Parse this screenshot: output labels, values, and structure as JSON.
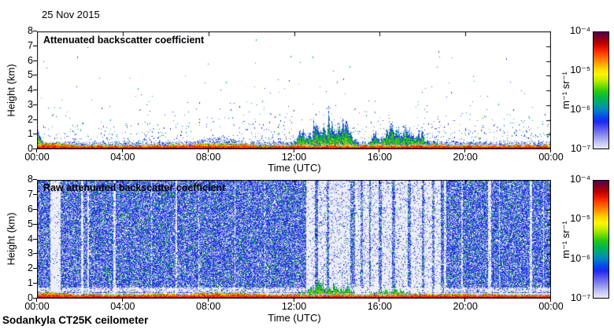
{
  "figure": {
    "date_title": "25 Nov 2015",
    "footer": "Sodankyla CT25K ceilometer",
    "xlabel": "Time (UTC)",
    "ylabel": "Height (km)",
    "colorbar_units": "m⁻¹ sr⁻¹",
    "background": "#ffffff"
  },
  "chart_data": [
    {
      "type": "heatmap",
      "panel": "top",
      "title": "Attenuated backscatter coefficient",
      "xlabel": "Time (UTC)",
      "ylabel": "Height (km)",
      "x_ticks": [
        "00:00",
        "04:00",
        "08:00",
        "12:00",
        "16:00",
        "20:00",
        "00:00"
      ],
      "x_tick_hours": [
        0,
        4,
        8,
        12,
        16,
        20,
        24
      ],
      "y_ticks": [
        "0",
        "1",
        "2",
        "3",
        "4",
        "5",
        "6",
        "7",
        "8"
      ],
      "x_range_hours": [
        0,
        24
      ],
      "y_range_km": [
        0,
        8
      ],
      "grid": false,
      "colorbar": {
        "scale": "log",
        "max": "1e-4",
        "min": "1e-7",
        "ticks": [
          "10⁻⁴",
          "10⁻⁵",
          "10⁻⁶",
          "10⁻⁷"
        ],
        "units": "m⁻¹ sr⁻¹",
        "gradient_stops": [
          "#500050 0%",
          "#7c0028 4%",
          "#b40000 9%",
          "#ee1400 14%",
          "#ff5500 20%",
          "#ff9600 26%",
          "#ffd200 31%",
          "#fff600 36%",
          "#c8ee00 41%",
          "#78dc00 46%",
          "#28c814 51%",
          "#00b450 57%",
          "#00a08c 62%",
          "#0082c8 67%",
          "#0050e6 72%",
          "#1e28f0 77%",
          "#5a5af0 83%",
          "#9090ee 89%",
          "#bcbef2 94%",
          "#eaeafc 100%"
        ]
      },
      "features": {
        "surface_aerosol_layer": {
          "hours": [
            0,
            24
          ],
          "top_km": 0.35,
          "backscatter": "1e-5 to 1e-4 m-1 sr-1"
        },
        "plume_at_start": {
          "hours": [
            0,
            0.5
          ],
          "top_km": 1.35
        },
        "boundary_layer_speckle": {
          "hours": [
            0,
            24
          ],
          "top_km_range": [
            0.3,
            0.9
          ],
          "enhanced_hours": [
            7.2,
            9.8
          ]
        },
        "sparse_noise_aloft": {
          "hours": [
            0,
            24
          ],
          "up_to_km": 8,
          "backscatter": "~1e-6"
        },
        "cloud_precipitation_events": [
          {
            "hours": [
              11.35,
              15.05
            ],
            "max_top_km": 3.0,
            "backscatter": "1e-6 to 1e-5",
            "envelope_km": [
              [
                11.35,
                0.15
              ],
              [
                11.8,
                0.5
              ],
              [
                12.1,
                1.1
              ],
              [
                12.35,
                2.5
              ],
              [
                12.55,
                1.2
              ],
              [
                12.9,
                2.2
              ],
              [
                13.2,
                2.9
              ],
              [
                13.6,
                3.0
              ],
              [
                13.95,
                2.7
              ],
              [
                14.3,
                2.9
              ],
              [
                14.6,
                1.8
              ],
              [
                14.9,
                0.9
              ],
              [
                15.05,
                0.4
              ]
            ]
          },
          {
            "hours": [
              15.25,
              19.3
            ],
            "max_top_km": 2.3,
            "backscatter": "1e-6 to 1e-5",
            "envelope_km": [
              [
                15.25,
                0.4
              ],
              [
                15.7,
                1.1
              ],
              [
                16.1,
                1.7
              ],
              [
                16.45,
                2.3
              ],
              [
                16.8,
                2.1
              ],
              [
                17.1,
                1.6
              ],
              [
                17.45,
                1.9
              ],
              [
                17.8,
                1.3
              ],
              [
                18.1,
                1.4
              ],
              [
                18.45,
                0.9
              ],
              [
                18.75,
                0.5
              ],
              [
                19.3,
                0.2
              ]
            ]
          }
        ]
      }
    },
    {
      "type": "heatmap",
      "panel": "bottom",
      "title": "Raw attenuated backscatter coefficient",
      "xlabel": "Time (UTC)",
      "ylabel": "Height (km)",
      "x_ticks": [
        "00:00",
        "04:00",
        "08:00",
        "12:00",
        "16:00",
        "20:00",
        "00:00"
      ],
      "x_tick_hours": [
        0,
        4,
        8,
        12,
        16,
        20,
        24
      ],
      "y_ticks": [
        "0",
        "1",
        "2",
        "3",
        "4",
        "5",
        "6",
        "7",
        "8"
      ],
      "x_range_hours": [
        0,
        24
      ],
      "y_range_km": [
        0,
        8
      ],
      "grid": false,
      "colorbar": {
        "scale": "log",
        "max": "1e-4",
        "min": "1e-7",
        "ticks": [
          "10⁻⁴",
          "10⁻⁵",
          "10⁻⁶",
          "10⁻⁷"
        ],
        "units": "m⁻¹ sr⁻¹",
        "gradient_stops": [
          "#500050 0%",
          "#7c0028 4%",
          "#b40000 9%",
          "#ee1400 14%",
          "#ff5500 20%",
          "#ff9600 26%",
          "#ffd200 31%",
          "#fff600 36%",
          "#c8ee00 41%",
          "#78dc00 46%",
          "#28c814 51%",
          "#00b450 57%",
          "#00a08c 62%",
          "#0082c8 67%",
          "#0050e6 72%",
          "#1e28f0 77%",
          "#5a5af0 83%",
          "#9090ee 89%",
          "#bcbef2 94%",
          "#eaeafc 100%"
        ]
      },
      "features": {
        "background_noise": {
          "hours": [
            0,
            24
          ],
          "up_to_km": 8,
          "backscatter": "1e-7 to 1e-6",
          "density": 0.8
        },
        "daytime_low_signal_region": {
          "hours": [
            12.55,
            18.85
          ],
          "density": 0.13
        },
        "daytime_blue_stripes_hours": [
          [
            12.95,
            0.15
          ],
          [
            13.5,
            0.12
          ],
          [
            14.6,
            0.22
          ],
          [
            15.1,
            0.1
          ],
          [
            15.5,
            0.06
          ],
          [
            15.95,
            0.12
          ],
          [
            16.55,
            0.14
          ],
          [
            17.3,
            0.14
          ],
          [
            17.95,
            0.1
          ],
          [
            18.45,
            0.1
          ]
        ],
        "data_gap_stripes": [
          [
            0.6,
            0.5,
            0.05
          ],
          [
            2.05,
            0.09,
            0.12
          ],
          [
            2.35,
            0.07,
            0.15
          ],
          [
            3.55,
            0.09,
            0.12
          ],
          [
            5.3,
            0.05,
            0.3
          ],
          [
            6.45,
            0.06,
            0.18
          ],
          [
            7.5,
            0.07,
            0.25
          ],
          [
            9.2,
            0.05,
            0.28
          ],
          [
            10.6,
            0.04,
            0.35
          ],
          [
            12.55,
            0.25,
            0.06
          ],
          [
            19.0,
            0.09,
            0.12
          ],
          [
            19.8,
            0.06,
            0.22
          ],
          [
            21.05,
            0.12,
            0.1
          ],
          [
            21.55,
            0.05,
            0.3
          ],
          [
            23.0,
            0.1,
            0.12
          ],
          [
            23.6,
            0.06,
            0.3
          ]
        ],
        "light_band_km": [
          0.45,
          0.75
        ],
        "surface_aerosol_layer": {
          "hours": [
            0,
            24
          ],
          "top_km": 0.35
        },
        "cloud_echoes": [
          {
            "hours": [
              11.85,
              15.05
            ],
            "max_top_km": 1.6,
            "envelope_km": [
              [
                11.85,
                0.2
              ],
              [
                12.3,
                0.5
              ],
              [
                12.8,
                1.1
              ],
              [
                13.1,
                1.4
              ],
              [
                13.45,
                1.6
              ],
              [
                13.8,
                1.1
              ],
              [
                14.1,
                1.3
              ],
              [
                14.5,
                1.2
              ],
              [
                14.85,
                0.5
              ],
              [
                15.05,
                0.25
              ]
            ]
          },
          {
            "hours": [
              15.25,
              18.5
            ],
            "max_top_km": 1.0,
            "envelope_km": [
              [
                15.25,
                0.3
              ],
              [
                15.8,
                0.7
              ],
              [
                16.2,
                0.9
              ],
              [
                16.7,
                1.0
              ],
              [
                17.2,
                0.7
              ],
              [
                17.7,
                0.55
              ],
              [
                18.1,
                0.4
              ],
              [
                18.5,
                0.2
              ]
            ]
          }
        ]
      }
    }
  ]
}
